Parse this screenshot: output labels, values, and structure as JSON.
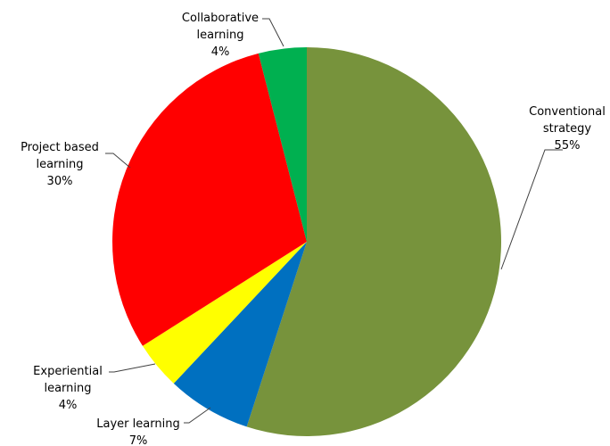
{
  "chart_data": {
    "type": "pie",
    "title": "",
    "start_angle_deg": 0,
    "direction": "clockwise",
    "legend": "none",
    "slices": [
      {
        "label": "Conventional strategy",
        "label_lines": [
          "Conventional",
          "strategy"
        ],
        "value": 55,
        "value_text": "55%",
        "color": "#77933C"
      },
      {
        "label": "Layer learning",
        "label_lines": [
          "Layer learning"
        ],
        "value": 7,
        "value_text": "7%",
        "color": "#0070C0"
      },
      {
        "label": "Experiential learning",
        "label_lines": [
          "Experiential",
          "learning"
        ],
        "value": 4,
        "value_text": "4%",
        "color": "#FFFF00"
      },
      {
        "label": "Project based learning",
        "label_lines": [
          "Project based",
          "learning"
        ],
        "value": 30,
        "value_text": "30%",
        "color": "#FF0000"
      },
      {
        "label": "Collaborative learning",
        "label_lines": [
          "Collaborative",
          "learning"
        ],
        "value": 4,
        "value_text": "4%",
        "color": "#00B050"
      }
    ]
  }
}
